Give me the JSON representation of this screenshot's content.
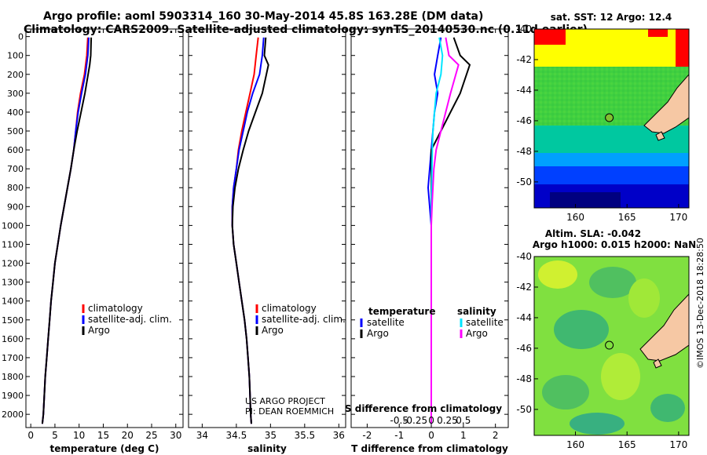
{
  "header": {
    "line1": "Argo profile: aoml 5903314_160 30-May-2014 45.8S 163.28E (DM data)",
    "line2": "Climatology: CARS2009. Satellite-adjusted climatology: synTS_20140530.nc (0.11d earlier)"
  },
  "credits": {
    "project": "US ARGO PROJECT",
    "pi": "PI: DEAN ROEMMICH",
    "imos": "©IMOS 13-Dec-2018 18:28:50"
  },
  "colors": {
    "climatology": "#ff0000",
    "satellite": "#0000ff",
    "argo": "#000000",
    "sat_salinity": "#00e5ff",
    "argo_salinity": "#ff00ff"
  },
  "chart_data": [
    {
      "id": "temperature",
      "type": "line",
      "xlabel": "temperature (deg C)",
      "ylabel": "",
      "xlim": [
        -1,
        31.5
      ],
      "ylim": [
        2070,
        -40
      ],
      "xticks": [
        0,
        5,
        10,
        15,
        20,
        25,
        30
      ],
      "xtick_labels": [
        "0",
        "5",
        "10",
        "15",
        "20",
        "25",
        "30"
      ],
      "yticks": [
        0,
        100,
        200,
        300,
        400,
        500,
        600,
        700,
        800,
        900,
        1000,
        1100,
        1200,
        1300,
        1400,
        1500,
        1600,
        1700,
        1800,
        1900,
        2000
      ],
      "ytick_labels": [
        "0",
        "100",
        "200",
        "300",
        "400",
        "500",
        "600",
        "700",
        "800",
        "900",
        "1000",
        "1100",
        "1200",
        "1300",
        "1400",
        "1500",
        "1600",
        "1700",
        "1800",
        "1900",
        "2000"
      ],
      "legend": [
        "climatology",
        "satellite-adj. clim.",
        "Argo"
      ],
      "legend_placement": "center",
      "series": [
        {
          "name": "climatology",
          "color": "#ff0000",
          "x": [
            11.8,
            11.6,
            11.1,
            10.3,
            9.7,
            9.3,
            8.9,
            8.3,
            7.6,
            6.9,
            6.2,
            5.6,
            5.0,
            4.6,
            4.2,
            3.9,
            3.6,
            3.3,
            3.0,
            2.8,
            2.6,
            2.4
          ],
          "y": [
            5,
            100,
            200,
            300,
            400,
            500,
            600,
            700,
            800,
            900,
            1000,
            1100,
            1200,
            1300,
            1400,
            1500,
            1600,
            1700,
            1800,
            1900,
            2000,
            2050
          ]
        },
        {
          "name": "satellite-adj. clim.",
          "color": "#0000ff",
          "x": [
            12.0,
            11.8,
            11.3,
            10.5,
            9.8,
            9.3,
            8.9,
            8.3,
            7.6,
            6.9,
            6.2,
            5.6,
            5.0,
            4.6,
            4.2,
            3.9,
            3.6,
            3.3,
            3.0,
            2.8,
            2.6,
            2.4
          ],
          "y": [
            5,
            100,
            200,
            300,
            400,
            500,
            600,
            700,
            800,
            900,
            1000,
            1100,
            1200,
            1300,
            1400,
            1500,
            1600,
            1700,
            1800,
            1900,
            2000,
            2050
          ]
        },
        {
          "name": "Argo",
          "color": "#000000",
          "x": [
            12.5,
            12.4,
            12.2,
            11.2,
            10.4,
            9.6,
            8.9,
            8.3,
            7.6,
            6.9,
            6.2,
            5.6,
            5.0,
            4.6,
            4.2,
            3.9,
            3.6,
            3.3,
            3.0,
            2.8,
            2.6,
            2.4
          ],
          "y": [
            5,
            100,
            150,
            300,
            400,
            500,
            600,
            700,
            800,
            900,
            1000,
            1100,
            1200,
            1300,
            1400,
            1500,
            1600,
            1700,
            1800,
            1900,
            2000,
            2050
          ]
        }
      ]
    },
    {
      "id": "salinity",
      "type": "line",
      "xlabel": "salinity",
      "ylabel": "",
      "xlim": [
        33.8,
        36.1
      ],
      "ylim": [
        2070,
        -40
      ],
      "xticks": [
        34,
        34.5,
        35,
        35.5,
        36
      ],
      "xtick_labels": [
        "34",
        "34.5",
        "35",
        "35.5",
        "36"
      ],
      "legend": [
        "climatology",
        "satellite-adj. clim.",
        "Argo"
      ],
      "legend_placement": "center",
      "series": [
        {
          "name": "climatology",
          "color": "#ff0000",
          "x": [
            34.82,
            34.79,
            34.76,
            34.7,
            34.64,
            34.58,
            34.53,
            34.5,
            34.46,
            34.44,
            34.44,
            34.46,
            34.5,
            34.54,
            34.58,
            34.62,
            34.65,
            34.67,
            34.69,
            34.7,
            34.71,
            34.72
          ],
          "y": [
            5,
            100,
            200,
            300,
            400,
            500,
            600,
            700,
            800,
            900,
            1000,
            1100,
            1200,
            1300,
            1400,
            1500,
            1600,
            1700,
            1800,
            1900,
            2000,
            2050
          ]
        },
        {
          "name": "satellite-adj. clim.",
          "color": "#0000ff",
          "x": [
            34.9,
            34.88,
            34.84,
            34.74,
            34.66,
            34.6,
            34.54,
            34.5,
            34.46,
            34.44,
            34.44,
            34.46,
            34.5,
            34.54,
            34.58,
            34.62,
            34.65,
            34.67,
            34.69,
            34.7,
            34.71,
            34.72
          ],
          "y": [
            5,
            100,
            200,
            300,
            400,
            500,
            600,
            700,
            800,
            900,
            1000,
            1100,
            1200,
            1300,
            1400,
            1500,
            1600,
            1700,
            1800,
            1900,
            2000,
            2050
          ]
        },
        {
          "name": "Argo",
          "color": "#000000",
          "x": [
            34.93,
            34.91,
            34.97,
            34.88,
            34.78,
            34.68,
            34.6,
            34.53,
            34.48,
            34.45,
            34.44,
            34.46,
            34.5,
            34.54,
            34.58,
            34.62,
            34.65,
            34.67,
            34.69,
            34.7,
            34.71,
            34.72
          ],
          "y": [
            5,
            100,
            150,
            300,
            400,
            500,
            600,
            700,
            800,
            900,
            1000,
            1100,
            1200,
            1300,
            1400,
            1500,
            1600,
            1700,
            1800,
            1900,
            2000,
            2050
          ]
        }
      ]
    },
    {
      "id": "difference",
      "type": "line",
      "xlabel": "T difference from climatology",
      "x2label": "S difference from climatology",
      "ylabel": "",
      "xlim": [
        -2.5,
        2.4
      ],
      "ylim": [
        2070,
        -40
      ],
      "xticks": [
        -2,
        -1,
        0,
        1,
        2
      ],
      "xtick_labels": [
        "-2",
        "-1",
        "0",
        "1",
        "2"
      ],
      "x2ticks": [
        -1.0,
        -0.5,
        0,
        0.5,
        1.0
      ],
      "x2tick_labels": [
        "-0.5",
        "-0.25",
        "0",
        "0.25",
        "0.5"
      ],
      "legend_groups": [
        {
          "title": "temperature",
          "items": [
            "satellite",
            "Argo"
          ]
        },
        {
          "title": "salinity",
          "items": [
            "satellite",
            "Argo"
          ]
        }
      ],
      "series": [
        {
          "name": "temperature satellite",
          "color": "#0000ff",
          "x": [
            0.3,
            0.2,
            0.1,
            0.2,
            0.1,
            0.05,
            0.0,
            -0.05,
            -0.1,
            -0.05,
            0.0,
            0.0,
            0.0,
            0.0,
            0.0,
            0.0,
            0.0,
            0.0,
            0.0,
            0.0,
            0.0,
            0.0
          ],
          "y": [
            5,
            100,
            200,
            300,
            400,
            500,
            600,
            700,
            800,
            900,
            1000,
            1100,
            1200,
            1300,
            1400,
            1500,
            1600,
            1700,
            1800,
            1900,
            2000,
            2050
          ]
        },
        {
          "name": "temperature Argo",
          "color": "#000000",
          "x": [
            0.7,
            0.9,
            1.2,
            0.9,
            0.6,
            0.3,
            0.0,
            0.0,
            0.0,
            0.0,
            0.0,
            0.0,
            0.0,
            0.0,
            0.0,
            0.0,
            0.0,
            0.0,
            0.0,
            0.0,
            0.0,
            0.0
          ],
          "y": [
            5,
            100,
            150,
            300,
            400,
            500,
            600,
            700,
            800,
            900,
            1000,
            1100,
            1200,
            1300,
            1400,
            1500,
            1600,
            1700,
            1800,
            1900,
            2000,
            2050
          ]
        },
        {
          "name": "salinity satellite",
          "color": "#00e5ff",
          "x": [
            0.25,
            0.35,
            0.3,
            0.15,
            0.1,
            0.05,
            0.03,
            0.02,
            0.01,
            0.0,
            0.0,
            0.0,
            0.0,
            0.0,
            0.0,
            0.0,
            0.0,
            0.0,
            0.0,
            0.0,
            0.0,
            0.0
          ],
          "y": [
            5,
            100,
            200,
            300,
            400,
            500,
            600,
            700,
            800,
            900,
            1000,
            1100,
            1200,
            1300,
            1400,
            1500,
            1600,
            1700,
            1800,
            1900,
            2000,
            2050
          ]
        },
        {
          "name": "salinity Argo",
          "color": "#ff00ff",
          "x": [
            0.45,
            0.55,
            0.85,
            0.6,
            0.45,
            0.3,
            0.15,
            0.08,
            0.05,
            0.02,
            0.0,
            0.0,
            0.0,
            0.0,
            0.0,
            0.0,
            0.0,
            0.0,
            0.0,
            0.0,
            0.0,
            0.0
          ],
          "y": [
            5,
            100,
            150,
            300,
            400,
            500,
            600,
            700,
            800,
            900,
            1000,
            1100,
            1200,
            1300,
            1400,
            1500,
            1600,
            1700,
            1800,
            1900,
            2000,
            2050
          ]
        }
      ]
    },
    {
      "id": "sst_map",
      "type": "heatmap",
      "title": "sat. SST: 12 Argo: 12.4",
      "xlim": [
        156,
        171
      ],
      "ylim": [
        -51.7,
        -40
      ],
      "xticks": [
        160,
        165,
        170
      ],
      "xtick_labels": [
        "160",
        "165",
        "170"
      ],
      "yticks": [
        -40,
        -42,
        -44,
        -46,
        -48,
        -50
      ],
      "ytick_labels": [
        "-40",
        "-42",
        "-44",
        "-46",
        "-48",
        "-50"
      ],
      "float_position": [
        163.28,
        -45.8
      ]
    },
    {
      "id": "sla_map",
      "type": "heatmap",
      "title": "Altim. SLA: -0.042",
      "subtitle": "Argo h1000: 0.015 h2000: NaN",
      "xlim": [
        156,
        171
      ],
      "ylim": [
        -51.7,
        -40
      ],
      "xticks": [
        160,
        165,
        170
      ],
      "xtick_labels": [
        "160",
        "165",
        "170"
      ],
      "yticks": [
        -40,
        -42,
        -44,
        -46,
        -48,
        -50
      ],
      "ytick_labels": [
        "-40",
        "-42",
        "-44",
        "-46",
        "-48",
        "-50"
      ],
      "float_position": [
        163.28,
        -45.8
      ]
    }
  ]
}
